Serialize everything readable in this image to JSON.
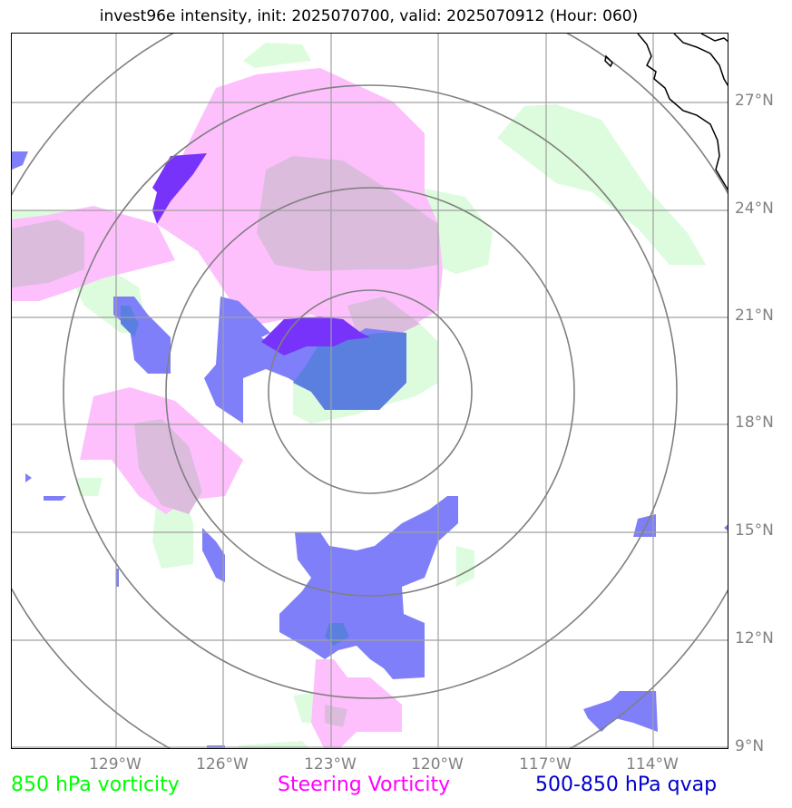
{
  "title": "invest96e intensity, init: 2025070700, valid: 2025070912 (Hour: 060)",
  "lat_labels": [
    "27°N",
    "24°N",
    "21°N",
    "18°N",
    "15°N",
    "12°N",
    "9°N"
  ],
  "lon_labels": [
    "129°W",
    "126°W",
    "123°W",
    "120°W",
    "117°W",
    "114°W"
  ],
  "legend": {
    "vorticity": "850 hPa vorticity",
    "steering": "Steering Vorticity",
    "qvap": "500-850 hPa qvap"
  },
  "colors": {
    "vorticity": "#00ff00",
    "steering": "#ff00ff",
    "qvap": "#0000cc",
    "vorticity_fill": "#ddfcdd",
    "steering_fill": "#fdc0fd",
    "qvap_fill": "#7f7ff9",
    "grid": "#a0a0a0",
    "rings": "#808080"
  }
}
